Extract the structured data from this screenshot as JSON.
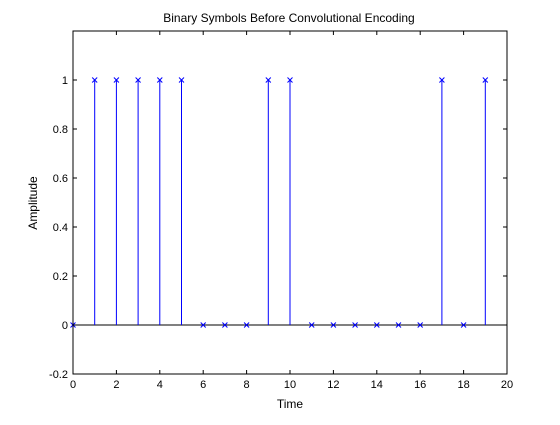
{
  "chart_data": {
    "type": "stem",
    "title": "Binary Symbols Before Convolutional Encoding",
    "xlabel": "Time",
    "ylabel": "Amplitude",
    "xlim": [
      0,
      20
    ],
    "ylim": [
      -0.2,
      1.2
    ],
    "xticks": [
      "0",
      "2",
      "4",
      "6",
      "8",
      "10",
      "12",
      "14",
      "16",
      "18",
      "20"
    ],
    "yticks": [
      "-0.2",
      "0",
      "0.2",
      "0.4",
      "0.6",
      "0.8",
      "1"
    ],
    "grid": false,
    "marker": "x",
    "series": [
      {
        "color": "#0000ff",
        "x": [
          0,
          1,
          2,
          3,
          4,
          5,
          6,
          7,
          8,
          9,
          10,
          11,
          12,
          13,
          14,
          15,
          16,
          17,
          18,
          19
        ],
        "values": [
          0,
          1,
          1,
          1,
          1,
          1,
          0,
          0,
          0,
          1,
          1,
          0,
          0,
          0,
          0,
          0,
          0,
          1,
          0,
          1
        ]
      }
    ]
  }
}
